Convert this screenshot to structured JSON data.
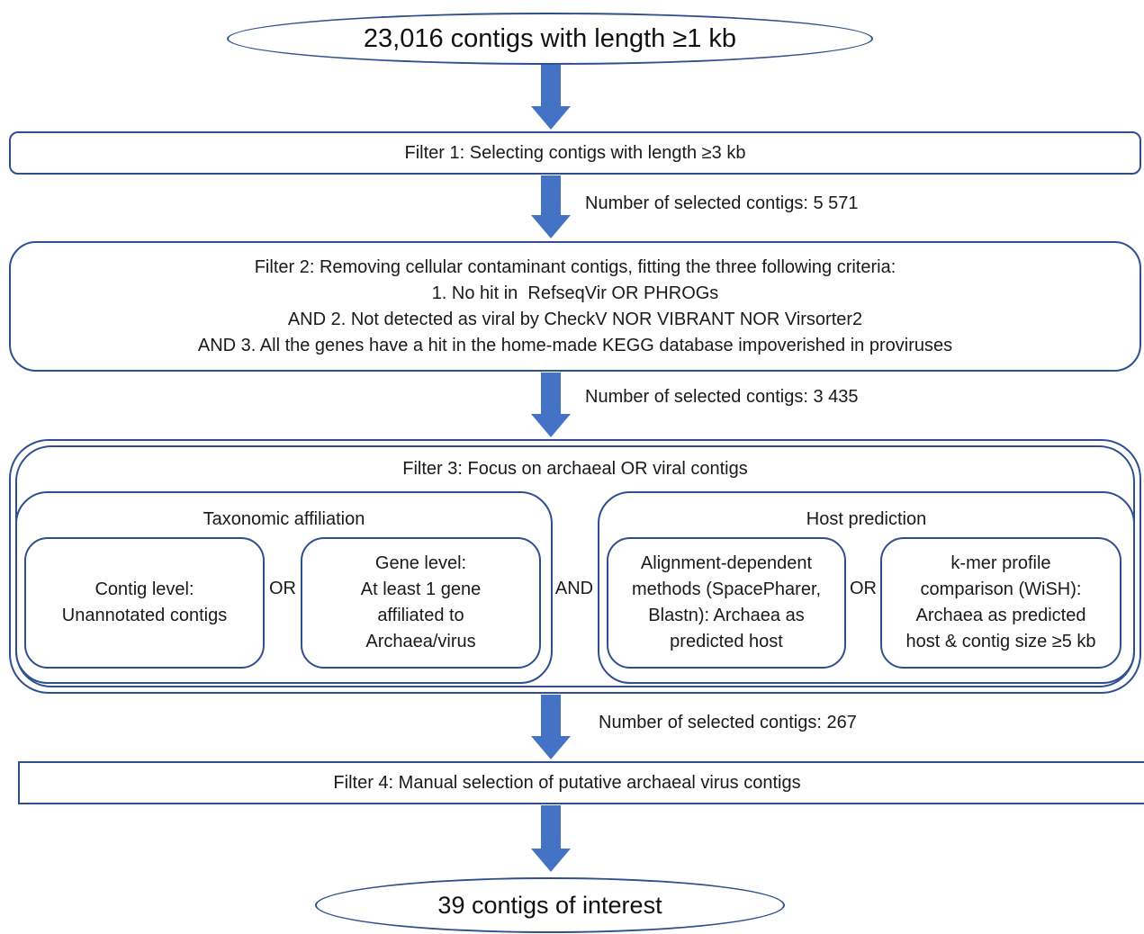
{
  "start": {
    "text": "23,016 contigs with length ≥1 kb"
  },
  "filter1": {
    "text": "Filter 1: Selecting contigs with length ≥3 kb"
  },
  "count1": {
    "text": "Number of selected contigs: 5 571"
  },
  "filter2": {
    "line1": "Filter 2: Removing cellular contaminant contigs, fitting the three following criteria:",
    "line2": "1. No hit in  RefseqVir OR PHROGs",
    "line3": "AND 2. Not detected as viral by CheckV NOR VIBRANT NOR Virsorter2",
    "line4": "AND 3. All the genes have a hit in the home-made KEGG database impoverished in proviruses"
  },
  "count2": {
    "text": "Number of selected contigs: 3 435"
  },
  "filter3": {
    "title": "Filter 3: Focus on archaeal OR viral contigs",
    "taxonomic": {
      "title": "Taxonomic affiliation",
      "contig_level": [
        "Contig level:",
        "Unannotated contigs"
      ],
      "or": "OR",
      "gene_level": [
        "Gene level:",
        "At least 1 gene",
        "affiliated to",
        "Archaea/virus"
      ]
    },
    "and": "AND",
    "host": {
      "title": "Host prediction",
      "alignment": [
        "Alignment-dependent",
        "methods (SpacePharer,",
        "Blastn): Archaea as",
        "predicted host"
      ],
      "or": "OR",
      "kmer": [
        "k-mer profile",
        "comparison (WiSH):",
        "Archaea as predicted",
        "host & contig size ≥5 kb"
      ]
    }
  },
  "count3": {
    "text": "Number of selected contigs: 267"
  },
  "filter4": {
    "text": "Filter 4: Manual selection of putative archaeal virus contigs"
  },
  "end": {
    "text": "39 contigs of interest"
  },
  "colors": {
    "arrow": "#4472c4",
    "border": "#2f4f8f"
  }
}
